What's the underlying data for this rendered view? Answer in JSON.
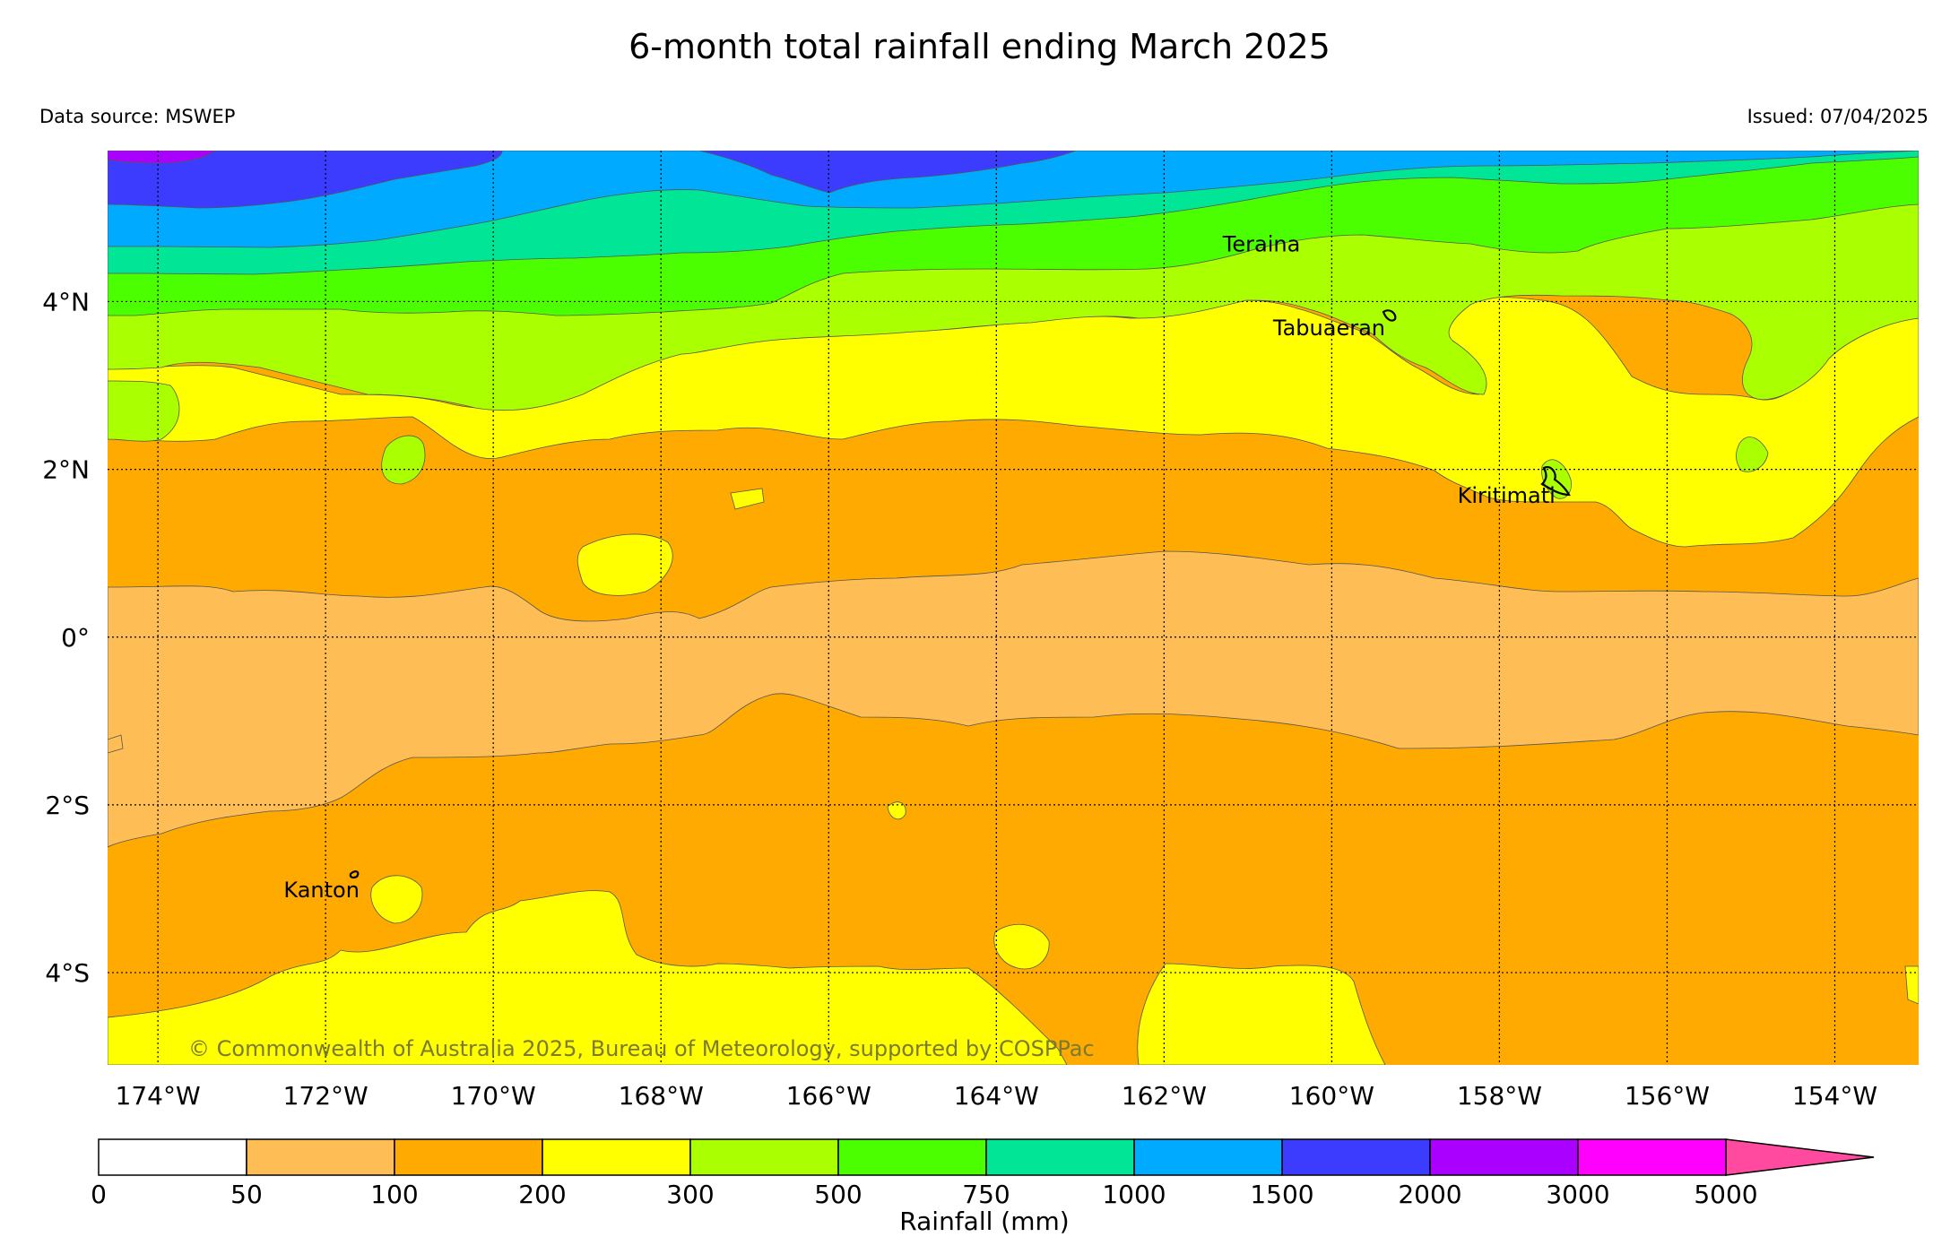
{
  "header": {
    "title": "6-month total rainfall ending March 2025",
    "source": "Data source: MSWEP",
    "issued": "Issued: 07/04/2025"
  },
  "map": {
    "lon_range": [
      -174.6,
      -153.0
    ],
    "lat_range": [
      -5.1,
      5.8
    ],
    "lon_ticks": [
      {
        "v": -174,
        "label": "174°W"
      },
      {
        "v": -172,
        "label": "172°W"
      },
      {
        "v": -170,
        "label": "170°W"
      },
      {
        "v": -168,
        "label": "168°W"
      },
      {
        "v": -166,
        "label": "166°W"
      },
      {
        "v": -164,
        "label": "164°W"
      },
      {
        "v": -162,
        "label": "162°W"
      },
      {
        "v": -160,
        "label": "160°W"
      },
      {
        "v": -158,
        "label": "158°W"
      },
      {
        "v": -156,
        "label": "156°W"
      },
      {
        "v": -154,
        "label": "154°W"
      }
    ],
    "lat_ticks": [
      {
        "v": 4,
        "label": "4°N"
      },
      {
        "v": 2,
        "label": "2°N"
      },
      {
        "v": 0,
        "label": "0°"
      },
      {
        "v": -2,
        "label": "2°S"
      },
      {
        "v": -4,
        "label": "4°S"
      }
    ],
    "places": [
      {
        "name": "Teraina",
        "lon": -161.3,
        "lat": 4.6
      },
      {
        "name": "Tabuaeran",
        "lon": -160.7,
        "lat": 3.6
      },
      {
        "name": "Kiritimati",
        "lon": -158.5,
        "lat": 1.6
      },
      {
        "name": "Kanton",
        "lon": -172.5,
        "lat": -3.1
      }
    ],
    "copyright": "© Commonwealth of Australia 2025, Bureau of Meteorology, supported by COSPPac"
  },
  "colorbar": {
    "label": "Rainfall (mm)",
    "ticks": [
      "0",
      "50",
      "100",
      "200",
      "300",
      "500",
      "750",
      "1000",
      "1500",
      "2000",
      "3000",
      "5000"
    ],
    "colors": [
      "#ffffff",
      "#ffbe55",
      "#ffaa00",
      "#ffff00",
      "#aaff00",
      "#4cff00",
      "#00e696",
      "#00aaff",
      "#3c3cff",
      "#aa00ff",
      "#ff00ff"
    ],
    "extend_color": "#ff4aa0"
  }
}
